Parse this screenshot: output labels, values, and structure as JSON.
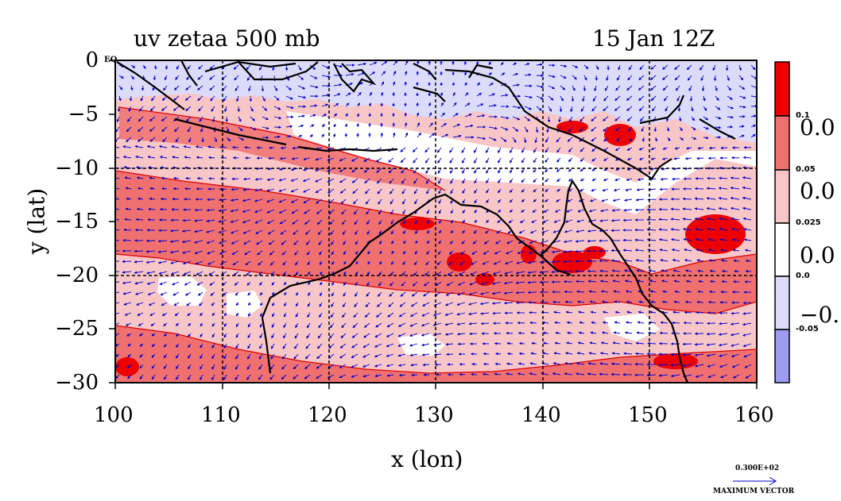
{
  "header": {
    "title_left": "uv zetaa 500 mb",
    "title_right": "15 Jan 12Z"
  },
  "axes": {
    "x_label": "x (lon)",
    "y_label": "y (lat)",
    "x_ticks": [
      "100",
      "110",
      "120",
      "130",
      "140",
      "150",
      "160"
    ],
    "y_ticks": [
      "0",
      "−5",
      "−10",
      "−15",
      "−20",
      "−25",
      "−30"
    ],
    "eq_label": "EQ",
    "x_range": [
      100,
      160
    ],
    "y_range": [
      -30,
      0
    ]
  },
  "colorbar": {
    "small_labels": [
      "0.1",
      "0.05",
      "0.025",
      "0.0",
      "-0.05"
    ],
    "big_labels": [
      "0.0",
      "0.0",
      "0.0",
      "−0."
    ],
    "colors": [
      "#ee0000",
      "#f07070",
      "#f8c6c6",
      "#ffffff",
      "#dcdcfa",
      "#9c9cf0"
    ]
  },
  "legend": {
    "max_vector_value": "0.300E+02",
    "max_vector_label": "MAXIMUM VECTOR"
  },
  "colors": {
    "strong_pos": "#ee0000",
    "mid_pos": "#f07070",
    "light_pos": "#f8c6c6",
    "neutral": "#ffffff",
    "light_neg": "#dcdcfa",
    "strong_neg": "#9c9cf0",
    "vector": "#0000cc",
    "coast": "#000000"
  }
}
